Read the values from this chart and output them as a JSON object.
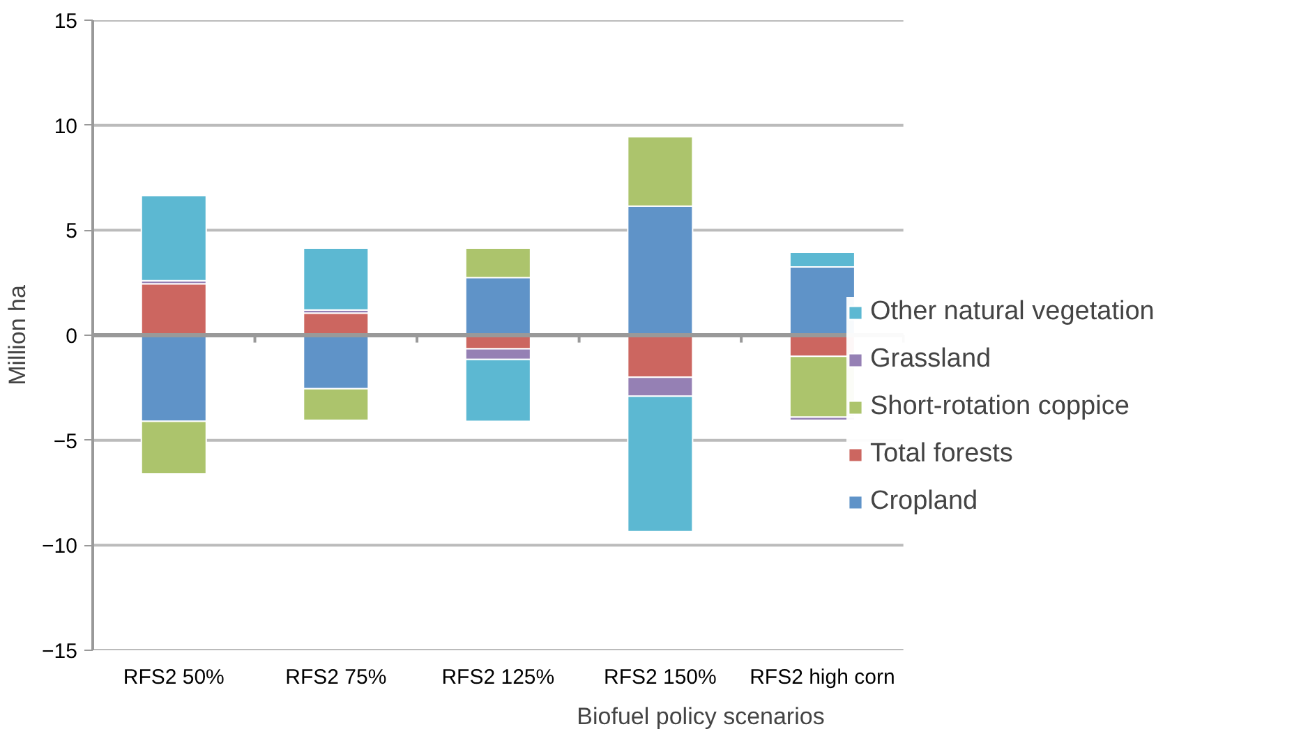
{
  "chart_data": {
    "type": "bar",
    "stacked": true,
    "xlabel": "Biofuel policy scenarios",
    "ylabel": "Million ha",
    "categories": [
      "RFS2 50%",
      "RFS2 75%",
      "RFS2 125%",
      "RFS2 150%",
      "RFS2 high corn"
    ],
    "series": [
      {
        "name": "Cropland",
        "color": "#5f93c8",
        "values": [
          -4.1,
          -2.55,
          2.75,
          6.15,
          3.25
        ]
      },
      {
        "name": "Total forests",
        "color": "#cc6660",
        "values": [
          2.45,
          1.05,
          -0.65,
          -2.0,
          -1.0
        ]
      },
      {
        "name": "Short-rotation coppice",
        "color": "#acc46c",
        "values": [
          -2.5,
          -1.5,
          1.4,
          3.3,
          -2.9
        ]
      },
      {
        "name": "Grassland",
        "color": "#9580b4",
        "values": [
          0.15,
          0.15,
          -0.5,
          -0.9,
          -0.15
        ]
      },
      {
        "name": "Other natural vegetation",
        "color": "#5cb8d2",
        "values": [
          4.05,
          2.95,
          -2.95,
          -6.45,
          0.7
        ]
      }
    ],
    "ylim": [
      -15,
      15
    ],
    "yticks": [
      -15,
      -10,
      -5,
      0,
      5,
      10,
      15
    ],
    "grid": "y",
    "legend": "right"
  }
}
